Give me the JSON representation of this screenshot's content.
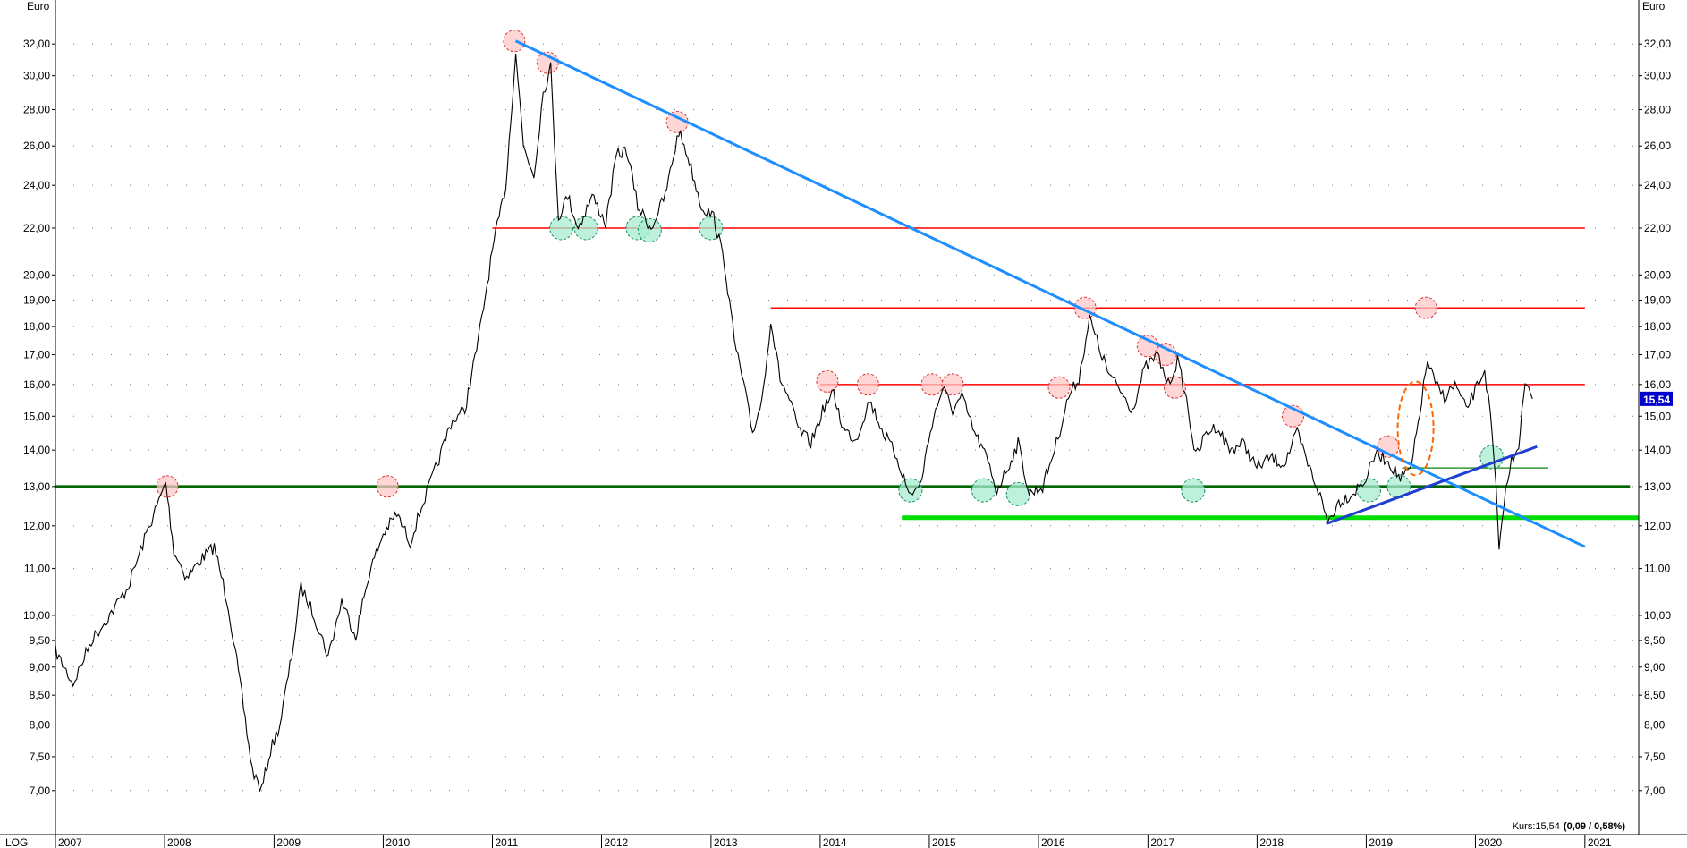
{
  "chart_data": {
    "type": "line",
    "scale": "log",
    "unit_label": "Euro",
    "scale_label": "LOG",
    "x_range": [
      "2007-01-01",
      "2021-06-30"
    ],
    "y_range": [
      6.4,
      35.0
    ],
    "y_ticks": [
      {
        "value": 32,
        "label": "32,00"
      },
      {
        "value": 30,
        "label": "30,00"
      },
      {
        "value": 28,
        "label": "28,00"
      },
      {
        "value": 26,
        "label": "26,00"
      },
      {
        "value": 24,
        "label": "24,00"
      },
      {
        "value": 22,
        "label": "22,00"
      },
      {
        "value": 20,
        "label": "20,00"
      },
      {
        "value": 19,
        "label": "19,00"
      },
      {
        "value": 18,
        "label": "18,00"
      },
      {
        "value": 17,
        "label": "17,00"
      },
      {
        "value": 16,
        "label": "16,00"
      },
      {
        "value": 15,
        "label": "15,00"
      },
      {
        "value": 14,
        "label": "14,00"
      },
      {
        "value": 13,
        "label": "13,00"
      },
      {
        "value": 12,
        "label": "12,00"
      },
      {
        "value": 11,
        "label": "11,00"
      },
      {
        "value": 10,
        "label": "10,00"
      },
      {
        "value": 9.5,
        "label": "9,50"
      },
      {
        "value": 9,
        "label": "9,00"
      },
      {
        "value": 8.5,
        "label": "8,50"
      },
      {
        "value": 8,
        "label": "8,00"
      },
      {
        "value": 7.5,
        "label": "7,50"
      },
      {
        "value": 7,
        "label": "7,00"
      }
    ],
    "x_ticks": [
      {
        "value": "2007-01-01",
        "label": "2007"
      },
      {
        "value": "2008-01-01",
        "label": "2008"
      },
      {
        "value": "2009-01-01",
        "label": "2009"
      },
      {
        "value": "2010-01-01",
        "label": "2010"
      },
      {
        "value": "2011-01-01",
        "label": "2011"
      },
      {
        "value": "2012-01-01",
        "label": "2012"
      },
      {
        "value": "2013-01-01",
        "label": "2013"
      },
      {
        "value": "2014-01-01",
        "label": "2014"
      },
      {
        "value": "2015-01-01",
        "label": "2015"
      },
      {
        "value": "2016-01-01",
        "label": "2016"
      },
      {
        "value": "2017-01-01",
        "label": "2017"
      },
      {
        "value": "2018-01-01",
        "label": "2018"
      },
      {
        "value": "2019-01-01",
        "label": "2019"
      },
      {
        "value": "2020-01-01",
        "label": "2020"
      },
      {
        "value": "2021-01-01",
        "label": "2021"
      }
    ],
    "series": [
      {
        "points": [
          [
            "2007-01-01",
            9.3
          ],
          [
            "2007-03-01",
            8.7
          ],
          [
            "2007-05-01",
            9.5
          ],
          [
            "2007-07-01",
            10.0
          ],
          [
            "2007-09-01",
            10.6
          ],
          [
            "2007-11-01",
            11.8
          ],
          [
            "2008-01-05",
            13.1
          ],
          [
            "2008-02-01",
            11.4
          ],
          [
            "2008-03-15",
            10.8
          ],
          [
            "2008-05-01",
            11.2
          ],
          [
            "2008-06-15",
            11.5
          ],
          [
            "2008-08-01",
            10.2
          ],
          [
            "2008-09-15",
            8.5
          ],
          [
            "2008-10-20",
            7.3
          ],
          [
            "2008-11-20",
            7.0
          ],
          [
            "2008-12-20",
            7.6
          ],
          [
            "2009-01-20",
            8.0
          ],
          [
            "2009-03-01",
            9.2
          ],
          [
            "2009-04-01",
            10.6
          ],
          [
            "2009-05-15",
            10.0
          ],
          [
            "2009-07-01",
            9.2
          ],
          [
            "2009-08-15",
            10.3
          ],
          [
            "2009-10-01",
            9.6
          ],
          [
            "2009-11-15",
            10.9
          ],
          [
            "2010-01-01",
            11.8
          ],
          [
            "2010-02-15",
            12.3
          ],
          [
            "2010-04-01",
            11.6
          ],
          [
            "2010-05-15",
            12.6
          ],
          [
            "2010-07-01",
            13.6
          ],
          [
            "2010-08-15",
            14.8
          ],
          [
            "2010-10-01",
            15.2
          ],
          [
            "2010-11-15",
            17.5
          ],
          [
            "2011-01-01",
            21.0
          ],
          [
            "2011-02-15",
            24.0
          ],
          [
            "2011-03-20",
            31.5
          ],
          [
            "2011-04-15",
            26.0
          ],
          [
            "2011-05-20",
            24.5
          ],
          [
            "2011-06-20",
            29.0
          ],
          [
            "2011-07-15",
            30.5
          ],
          [
            "2011-08-10",
            22.5
          ],
          [
            "2011-09-10",
            23.5
          ],
          [
            "2011-10-15",
            22.0
          ],
          [
            "2011-12-01",
            23.5
          ],
          [
            "2012-01-15",
            22.2
          ],
          [
            "2012-02-20",
            25.5
          ],
          [
            "2012-03-25",
            25.8
          ],
          [
            "2012-05-01",
            23.0
          ],
          [
            "2012-06-15",
            22.0
          ],
          [
            "2012-08-01",
            23.5
          ],
          [
            "2012-09-15",
            26.8
          ],
          [
            "2012-10-15",
            25.5
          ],
          [
            "2012-11-30",
            23.0
          ],
          [
            "2013-01-10",
            22.5
          ],
          [
            "2013-02-15",
            20.5
          ],
          [
            "2013-03-20",
            17.5
          ],
          [
            "2013-04-20",
            16.0
          ],
          [
            "2013-05-20",
            14.5
          ],
          [
            "2013-06-20",
            15.5
          ],
          [
            "2013-07-20",
            18.2
          ],
          [
            "2013-08-20",
            16.2
          ],
          [
            "2013-09-20",
            15.5
          ],
          [
            "2013-10-20",
            14.6
          ],
          [
            "2013-12-01",
            14.2
          ],
          [
            "2014-01-15",
            15.3
          ],
          [
            "2014-02-15",
            15.7
          ],
          [
            "2014-03-20",
            14.6
          ],
          [
            "2014-05-01",
            14.3
          ],
          [
            "2014-06-15",
            15.5
          ],
          [
            "2014-08-01",
            14.5
          ],
          [
            "2014-09-15",
            13.8
          ],
          [
            "2014-10-25",
            12.8
          ],
          [
            "2014-12-01",
            13.0
          ],
          [
            "2015-01-10",
            14.8
          ],
          [
            "2015-02-15",
            15.9
          ],
          [
            "2015-03-20",
            15.2
          ],
          [
            "2015-04-20",
            15.6
          ],
          [
            "2015-06-01",
            14.5
          ],
          [
            "2015-07-10",
            13.8
          ],
          [
            "2015-08-15",
            12.9
          ],
          [
            "2015-09-20",
            13.5
          ],
          [
            "2015-10-25",
            14.2
          ],
          [
            "2015-12-01",
            12.8
          ],
          [
            "2016-01-15",
            13.0
          ],
          [
            "2016-03-01",
            14.2
          ],
          [
            "2016-04-10",
            15.6
          ],
          [
            "2016-05-15",
            16.2
          ],
          [
            "2016-06-20",
            18.3
          ],
          [
            "2016-07-20",
            17.3
          ],
          [
            "2016-08-25",
            16.3
          ],
          [
            "2016-10-01",
            15.8
          ],
          [
            "2016-11-10",
            15.2
          ],
          [
            "2016-12-20",
            16.5
          ],
          [
            "2017-02-01",
            17.0
          ],
          [
            "2017-03-10",
            16.0
          ],
          [
            "2017-04-10",
            16.8
          ],
          [
            "2017-05-10",
            15.5
          ],
          [
            "2017-06-10",
            13.8
          ],
          [
            "2017-07-15",
            14.5
          ],
          [
            "2017-08-20",
            14.7
          ],
          [
            "2017-10-01",
            14.0
          ],
          [
            "2017-11-15",
            14.2
          ],
          [
            "2017-12-31",
            13.5
          ],
          [
            "2018-02-15",
            13.8
          ],
          [
            "2018-04-01",
            13.6
          ],
          [
            "2018-05-15",
            14.5
          ],
          [
            "2018-06-20",
            13.6
          ],
          [
            "2018-07-25",
            12.9
          ],
          [
            "2018-08-25",
            12.1
          ],
          [
            "2018-10-01",
            12.6
          ],
          [
            "2018-11-15",
            12.8
          ],
          [
            "2018-12-31",
            13.2
          ],
          [
            "2019-02-01",
            13.9
          ],
          [
            "2019-03-15",
            13.7
          ],
          [
            "2019-04-25",
            13.2
          ],
          [
            "2019-06-01",
            13.5
          ],
          [
            "2019-07-05",
            15.5
          ],
          [
            "2019-07-25",
            16.8
          ],
          [
            "2019-08-20",
            16.0
          ],
          [
            "2019-09-20",
            15.6
          ],
          [
            "2019-10-25",
            16.0
          ],
          [
            "2019-12-01",
            15.2
          ],
          [
            "2019-12-31",
            15.8
          ],
          [
            "2020-02-01",
            16.5
          ],
          [
            "2020-02-20",
            15.0
          ],
          [
            "2020-03-10",
            13.0
          ],
          [
            "2020-03-20",
            11.3
          ],
          [
            "2020-04-05",
            12.6
          ],
          [
            "2020-05-01",
            13.7
          ],
          [
            "2020-05-25",
            14.2
          ],
          [
            "2020-06-15",
            16.0
          ],
          [
            "2020-07-10",
            15.54
          ]
        ]
      }
    ],
    "horizontal_lines": [
      {
        "color": "#ff0000",
        "y": 22.0,
        "x_start": "2011-01-01",
        "x_end": "2021-01-01"
      },
      {
        "color": "#ff0000",
        "y": 18.7,
        "x_start": "2013-07-20",
        "x_end": "2021-01-01"
      },
      {
        "color": "#ff0000",
        "y": 16.0,
        "x_start": "2014-01-01",
        "x_end": "2021-01-01"
      },
      {
        "color": "#006600",
        "y": 13.0,
        "x_start": "2007-01-01",
        "x_end": "2021-06-01"
      },
      {
        "color": "#00dd00",
        "y": 12.2,
        "x_start": "2014-10-01",
        "x_end": "2021-09-01"
      },
      {
        "color": "#339933",
        "y": 13.5,
        "x_start": "2019-05-01",
        "x_end": "2020-09-01"
      }
    ],
    "trend_lines": [
      {
        "color": "#1f8fff",
        "from": [
          "2011-03-20",
          32.2
        ],
        "to": [
          "2021-01-01",
          11.5
        ]
      },
      {
        "color": "#1f3fd0",
        "from": [
          "2018-08-20",
          12.05
        ],
        "to": [
          "2020-07-25",
          14.1
        ]
      }
    ],
    "resistance_markers": [
      [
        "2008-01-10",
        13.0
      ],
      [
        "2010-01-15",
        13.0
      ],
      [
        "2011-03-15",
        32.2
      ],
      [
        "2011-07-05",
        30.8
      ],
      [
        "2012-09-10",
        27.3
      ],
      [
        "2014-01-25",
        16.1
      ],
      [
        "2014-06-10",
        16.0
      ],
      [
        "2015-01-10",
        16.0
      ],
      [
        "2015-03-20",
        16.0
      ],
      [
        "2016-03-10",
        15.9
      ],
      [
        "2016-06-05",
        18.7
      ],
      [
        "2017-01-01",
        17.3
      ],
      [
        "2017-03-01",
        17.0
      ],
      [
        "2017-04-01",
        15.9
      ],
      [
        "2018-05-01",
        15.0
      ],
      [
        "2019-03-15",
        14.1
      ],
      [
        "2019-07-20",
        18.7
      ]
    ],
    "support_markers": [
      [
        "2011-08-20",
        22.0
      ],
      [
        "2011-11-10",
        22.0
      ],
      [
        "2012-05-01",
        22.0
      ],
      [
        "2012-06-10",
        21.9
      ],
      [
        "2013-01-01",
        22.0
      ],
      [
        "2014-10-30",
        12.9
      ],
      [
        "2015-07-01",
        12.9
      ],
      [
        "2015-10-25",
        12.8
      ],
      [
        "2017-06-01",
        12.9
      ],
      [
        "2019-01-10",
        12.9
      ],
      [
        "2019-04-20",
        13.0
      ],
      [
        "2020-02-25",
        13.8
      ]
    ],
    "highlight_ellipse": {
      "color": "#ff6600",
      "center": [
        "2019-06-15",
        14.5
      ],
      "y_top": 16.1,
      "y_bottom": 13.3
    },
    "last_price": {
      "value": 15.54,
      "label": "15,54",
      "color": "#0000cc"
    },
    "footer": {
      "label": "Kurs:15,54",
      "change": "(0,09 / 0,58%)"
    }
  }
}
